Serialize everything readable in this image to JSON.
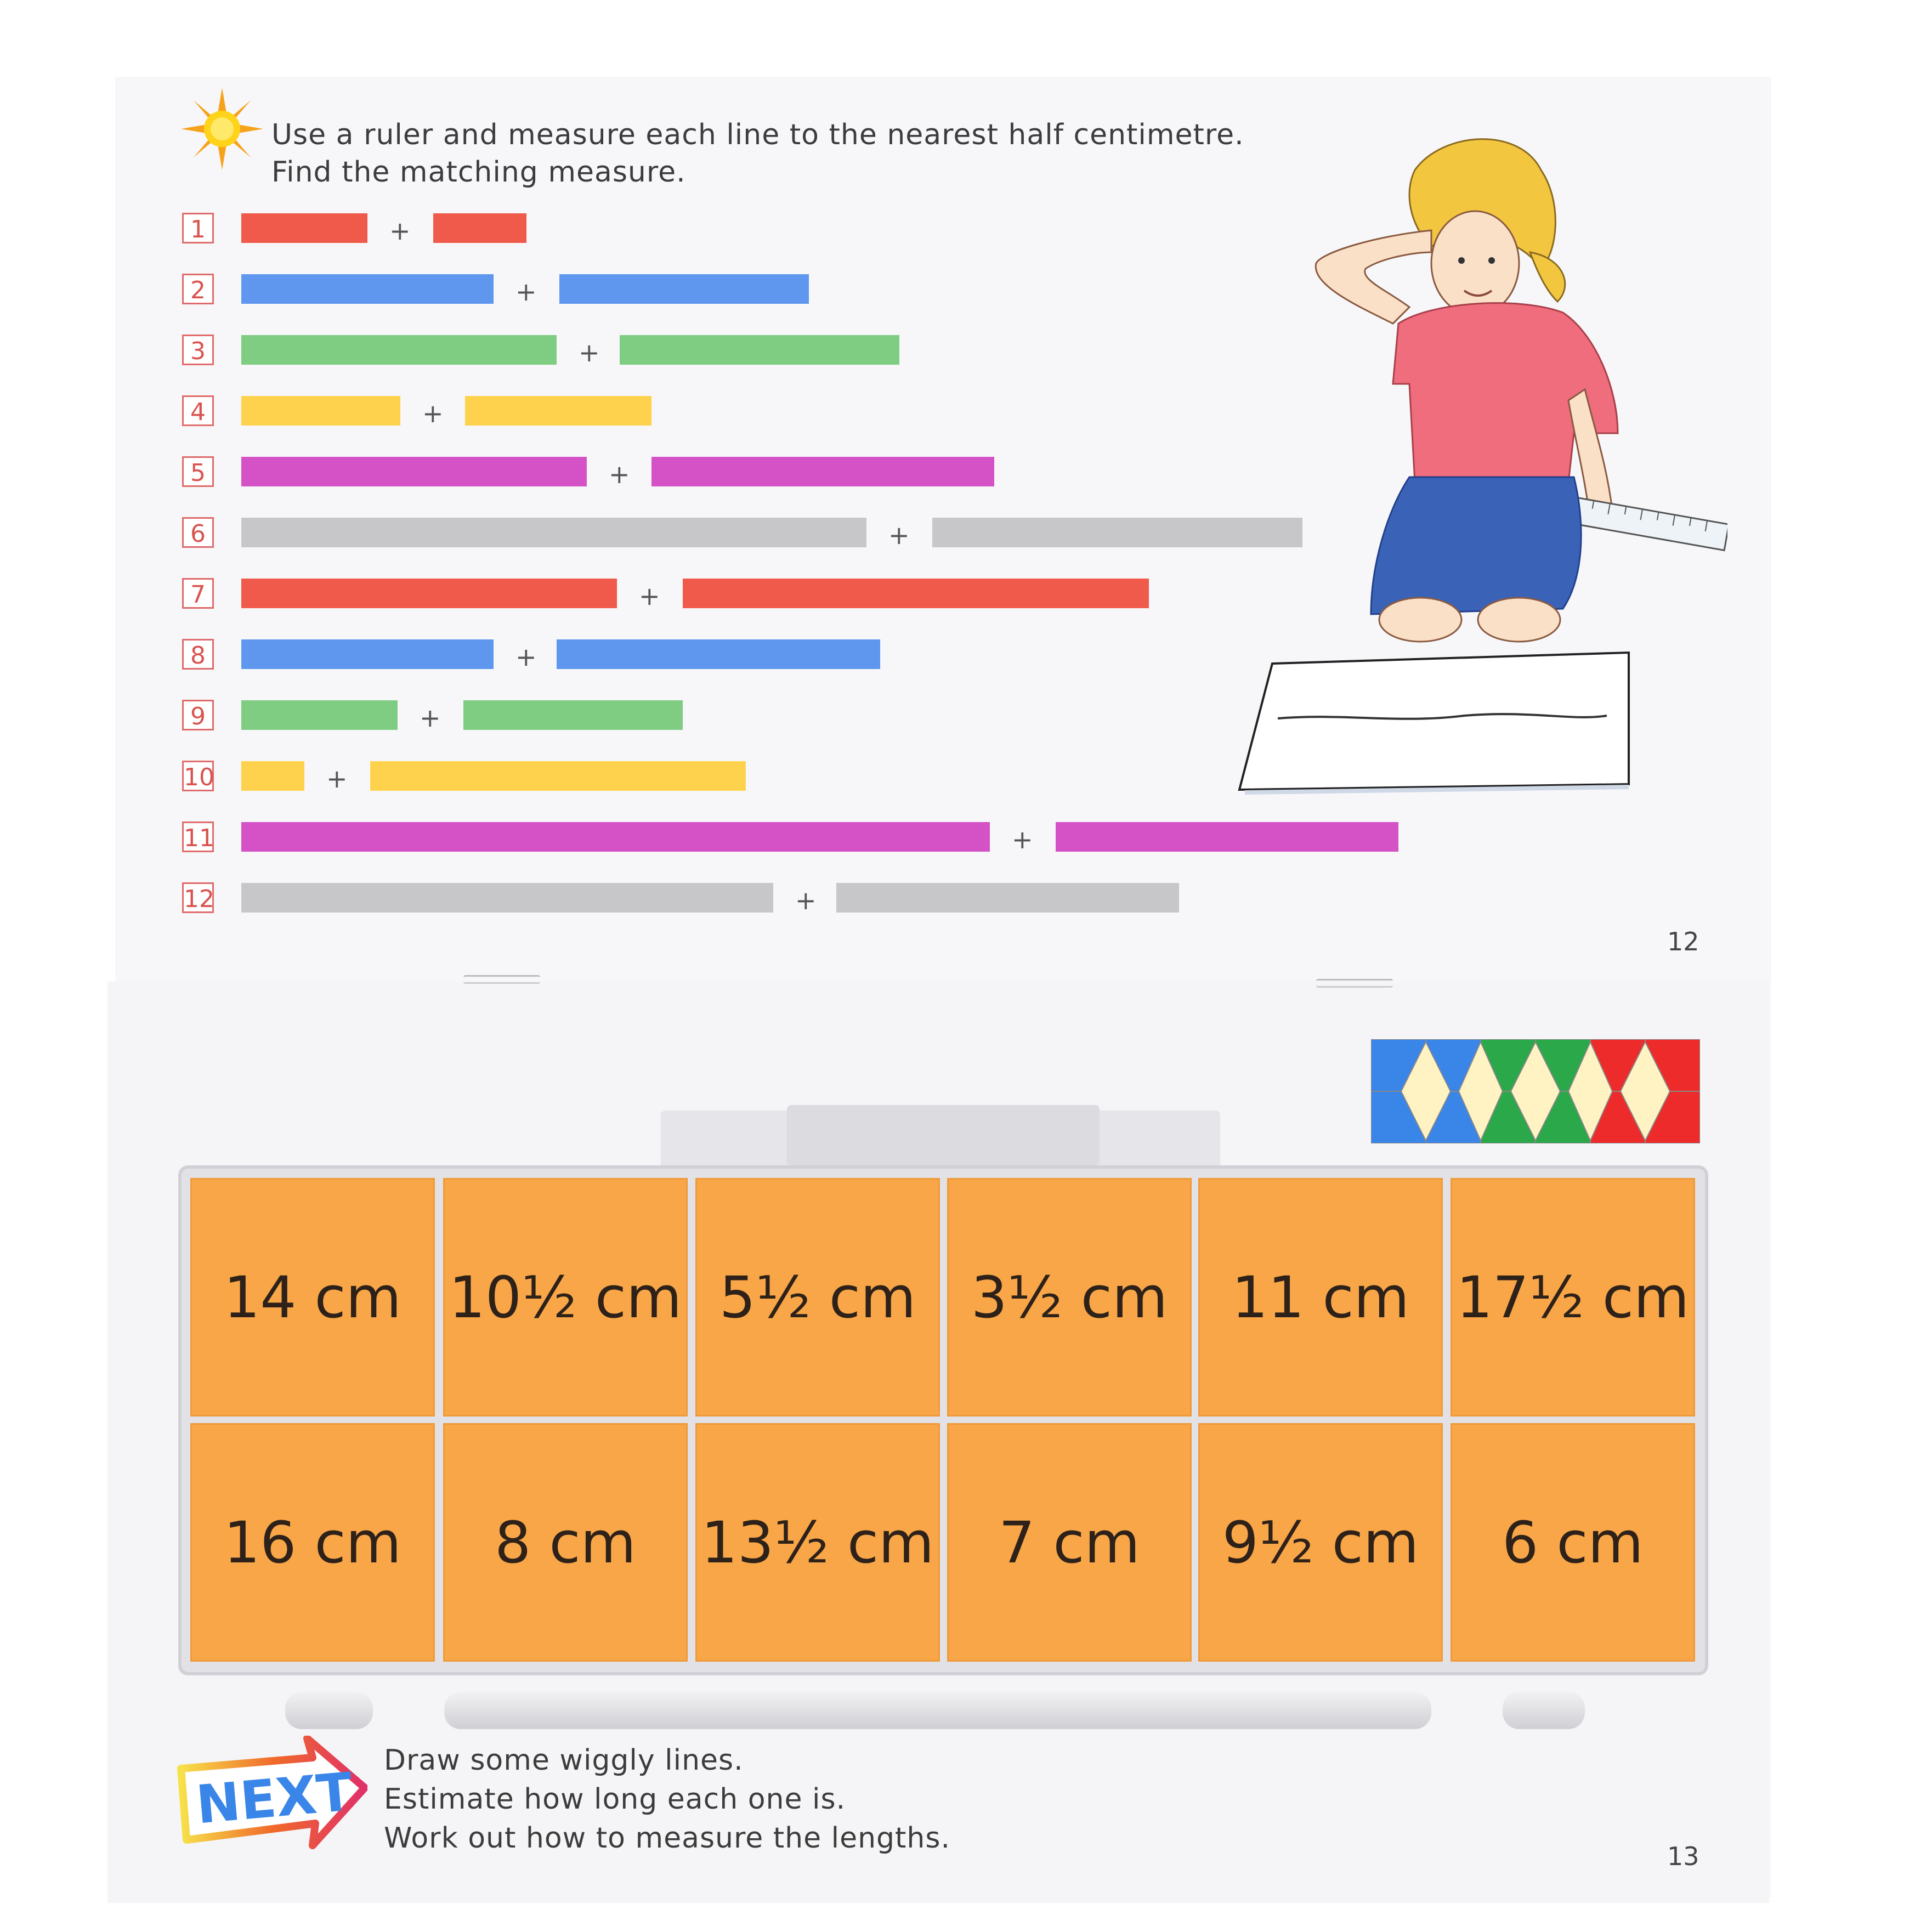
{
  "instructions": {
    "line1": "Use a ruler and measure each line to the nearest half centimetre.",
    "line2": "Find the matching measure."
  },
  "rows": [
    {
      "n": "1",
      "color": "#f05a4a"
    },
    {
      "n": "2",
      "color": "#5f97ee"
    },
    {
      "n": "3",
      "color": "#7fcd82"
    },
    {
      "n": "4",
      "color": "#ffd24d"
    },
    {
      "n": "5",
      "color": "#d452c6"
    },
    {
      "n": "6",
      "color": "#c7c7ca"
    },
    {
      "n": "7",
      "color": "#f05a4a"
    },
    {
      "n": "8",
      "color": "#5f97ee"
    },
    {
      "n": "9",
      "color": "#7fcd82"
    },
    {
      "n": "10",
      "color": "#ffd24d"
    },
    {
      "n": "11",
      "color": "#d452c6"
    },
    {
      "n": "12",
      "color": "#c7c7ca"
    }
  ],
  "plus": "+",
  "page_numbers": {
    "top": "12",
    "bottom": "13"
  },
  "measures": {
    "row1": [
      "14 cm",
      "10½ cm",
      "5½ cm",
      "3½ cm",
      "11 cm",
      "17½ cm"
    ],
    "row2": [
      "16 cm",
      "8 cm",
      "13½ cm",
      "7 cm",
      "9½ cm",
      "6 cm"
    ]
  },
  "next": {
    "logo": "NEXT",
    "line1": "Draw some wiggly lines.",
    "line2": "Estimate how long each one is.",
    "line3": "Work out how to measure the lengths."
  },
  "colors": {
    "tile": "#f8a647",
    "blue": "#3a86e8",
    "green": "#2aa84a",
    "red": "#ee2b2b",
    "cream": "#fff3c4"
  }
}
